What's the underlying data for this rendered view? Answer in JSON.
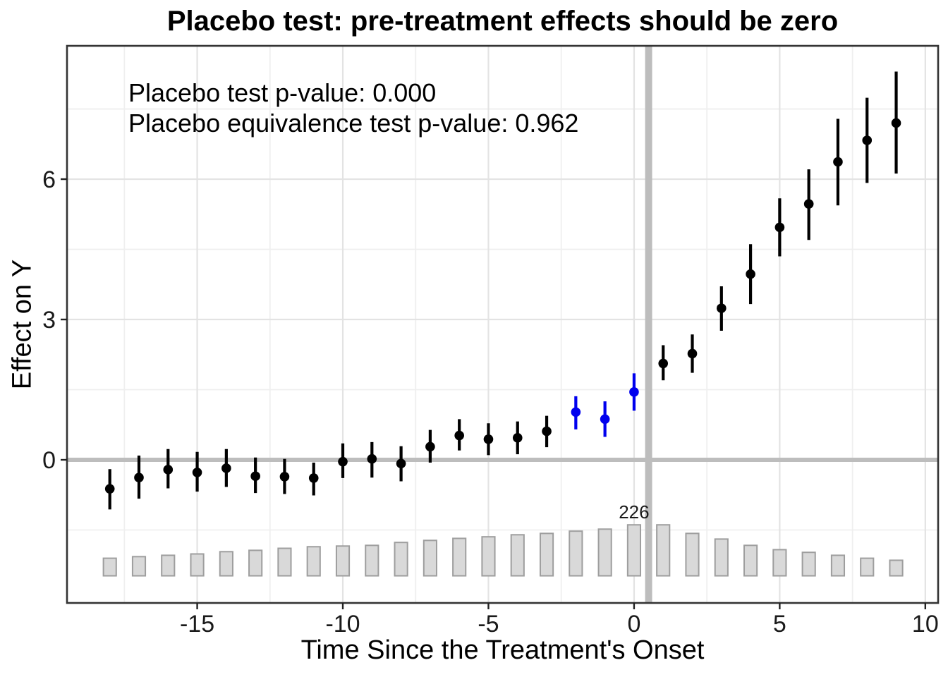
{
  "title": "Placebo test: pre-treatment effects should be zero",
  "annotation": {
    "line1": "Placebo test p-value: 0.000",
    "line2": "Placebo equivalence test p-value: 0.962"
  },
  "chart_data": {
    "type": "scatter",
    "subtype": "pointrange-event-study-with-count-bars",
    "title": "Placebo test: pre-treatment effects should be zero",
    "xlabel": "Time Since the Treatment's Onset",
    "ylabel": "Effect on Y",
    "x_range": [
      -19.47,
      10.44
    ],
    "y_range": [
      -3.06,
      8.85
    ],
    "x_ticks": [
      -15,
      -10,
      -5,
      0,
      5,
      10
    ],
    "y_ticks": [
      0,
      3,
      6
    ],
    "x_minor_gridlines": [
      -17.5,
      -12.5,
      -7.5,
      -2.5,
      2.5,
      7.5
    ],
    "y_minor_gridlines": [
      -1.5,
      1.5,
      4.5,
      7.5
    ],
    "grid": "on",
    "legend_position": "none",
    "reference_lines": {
      "hline_y": 0,
      "vline_x": 0.5
    },
    "points": [
      {
        "t": -18,
        "est": -0.62,
        "ci_lo": -1.06,
        "ci_hi": -0.2,
        "is_placebo_period": false
      },
      {
        "t": -17,
        "est": -0.38,
        "ci_lo": -0.83,
        "ci_hi": 0.09,
        "is_placebo_period": false
      },
      {
        "t": -16,
        "est": -0.21,
        "ci_lo": -0.61,
        "ci_hi": 0.23,
        "is_placebo_period": false
      },
      {
        "t": -15,
        "est": -0.27,
        "ci_lo": -0.68,
        "ci_hi": 0.17,
        "is_placebo_period": false
      },
      {
        "t": -14,
        "est": -0.18,
        "ci_lo": -0.58,
        "ci_hi": 0.23,
        "is_placebo_period": false
      },
      {
        "t": -13,
        "est": -0.35,
        "ci_lo": -0.71,
        "ci_hi": 0.05,
        "is_placebo_period": false
      },
      {
        "t": -12,
        "est": -0.36,
        "ci_lo": -0.73,
        "ci_hi": 0.02,
        "is_placebo_period": false
      },
      {
        "t": -11,
        "est": -0.39,
        "ci_lo": -0.76,
        "ci_hi": -0.06,
        "is_placebo_period": false
      },
      {
        "t": -10,
        "est": -0.04,
        "ci_lo": -0.39,
        "ci_hi": 0.35,
        "is_placebo_period": false
      },
      {
        "t": -9,
        "est": 0.02,
        "ci_lo": -0.38,
        "ci_hi": 0.38,
        "is_placebo_period": false
      },
      {
        "t": -8,
        "est": -0.08,
        "ci_lo": -0.46,
        "ci_hi": 0.29,
        "is_placebo_period": false
      },
      {
        "t": -7,
        "est": 0.28,
        "ci_lo": -0.06,
        "ci_hi": 0.64,
        "is_placebo_period": false
      },
      {
        "t": -6,
        "est": 0.52,
        "ci_lo": 0.2,
        "ci_hi": 0.87,
        "is_placebo_period": false
      },
      {
        "t": -5,
        "est": 0.44,
        "ci_lo": 0.1,
        "ci_hi": 0.78,
        "is_placebo_period": false
      },
      {
        "t": -4,
        "est": 0.47,
        "ci_lo": 0.12,
        "ci_hi": 0.82,
        "is_placebo_period": false
      },
      {
        "t": -3,
        "est": 0.61,
        "ci_lo": 0.27,
        "ci_hi": 0.94,
        "is_placebo_period": false
      },
      {
        "t": -2,
        "est": 1.02,
        "ci_lo": 0.65,
        "ci_hi": 1.36,
        "is_placebo_period": true
      },
      {
        "t": -1,
        "est": 0.87,
        "ci_lo": 0.49,
        "ci_hi": 1.25,
        "is_placebo_period": true
      },
      {
        "t": 0,
        "est": 1.45,
        "ci_lo": 1.05,
        "ci_hi": 1.85,
        "is_placebo_period": true
      },
      {
        "t": 1,
        "est": 2.06,
        "ci_lo": 1.7,
        "ci_hi": 2.45,
        "is_placebo_period": false
      },
      {
        "t": 2,
        "est": 2.27,
        "ci_lo": 1.86,
        "ci_hi": 2.68,
        "is_placebo_period": false
      },
      {
        "t": 3,
        "est": 3.24,
        "ci_lo": 2.76,
        "ci_hi": 3.71,
        "is_placebo_period": false
      },
      {
        "t": 4,
        "est": 3.97,
        "ci_lo": 3.33,
        "ci_hi": 4.61,
        "is_placebo_period": false
      },
      {
        "t": 5,
        "est": 4.97,
        "ci_lo": 4.35,
        "ci_hi": 5.59,
        "is_placebo_period": false
      },
      {
        "t": 6,
        "est": 5.47,
        "ci_lo": 4.7,
        "ci_hi": 6.21,
        "is_placebo_period": false
      },
      {
        "t": 7,
        "est": 6.37,
        "ci_lo": 5.44,
        "ci_hi": 7.29,
        "is_placebo_period": false
      },
      {
        "t": 8,
        "est": 6.83,
        "ci_lo": 5.92,
        "ci_hi": 7.74,
        "is_placebo_period": false
      },
      {
        "t": 9,
        "est": 7.2,
        "ci_lo": 6.12,
        "ci_hi": 8.3,
        "is_placebo_period": false
      }
    ],
    "histogram": {
      "description": "number of treated units per period (gray bars at bottom)",
      "max_count_label": "226",
      "max_count": 226,
      "label_at_t": 0,
      "baseline_value": -2.48,
      "max_height_units": 1.09,
      "bar_width_units": 0.44,
      "counts": [
        {
          "t": -18,
          "count": 78
        },
        {
          "t": -17,
          "count": 85
        },
        {
          "t": -16,
          "count": 91
        },
        {
          "t": -15,
          "count": 97
        },
        {
          "t": -14,
          "count": 107
        },
        {
          "t": -13,
          "count": 113
        },
        {
          "t": -12,
          "count": 122
        },
        {
          "t": -11,
          "count": 129
        },
        {
          "t": -10,
          "count": 132
        },
        {
          "t": -9,
          "count": 135
        },
        {
          "t": -8,
          "count": 148
        },
        {
          "t": -7,
          "count": 157
        },
        {
          "t": -6,
          "count": 166
        },
        {
          "t": -5,
          "count": 173
        },
        {
          "t": -4,
          "count": 182
        },
        {
          "t": -3,
          "count": 188
        },
        {
          "t": -2,
          "count": 198
        },
        {
          "t": -1,
          "count": 207
        },
        {
          "t": 0,
          "count": 226
        },
        {
          "t": 1,
          "count": 226
        },
        {
          "t": 2,
          "count": 188
        },
        {
          "t": 3,
          "count": 163
        },
        {
          "t": 4,
          "count": 135
        },
        {
          "t": 5,
          "count": 116
        },
        {
          "t": 6,
          "count": 104
        },
        {
          "t": 7,
          "count": 91
        },
        {
          "t": 8,
          "count": 78
        },
        {
          "t": 9,
          "count": 69
        }
      ]
    }
  },
  "colors": {
    "point_black": "#000000",
    "point_blue": "#0000EE",
    "reference_gray": "#bdbdbd",
    "bar_fill": "#d9d9d9",
    "bar_stroke": "#9e9e9e",
    "grid_major": "#e3e3e3",
    "grid_minor": "#efefef",
    "panel_border": "#343434",
    "tick": "#222222"
  }
}
